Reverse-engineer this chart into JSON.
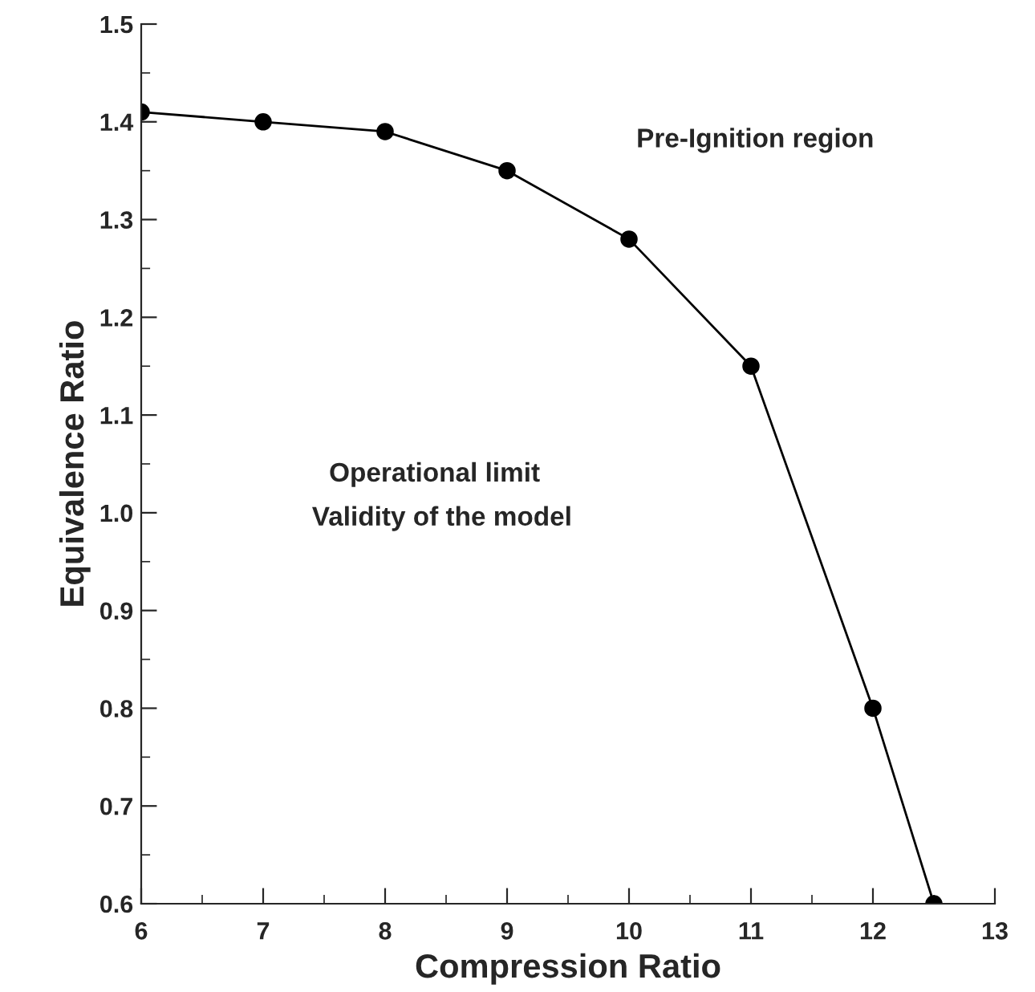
{
  "chart_data": {
    "type": "line",
    "xlabel": "Compression Ratio",
    "ylabel": "Equivalence Ratio",
    "x": [
      6,
      7,
      8,
      9,
      10,
      11,
      12,
      12.5
    ],
    "series": [
      {
        "color": "#000000",
        "values": [
          1.41,
          1.4,
          1.39,
          1.35,
          1.28,
          1.15,
          0.8,
          0.6
        ]
      }
    ],
    "marker": "circle",
    "line_style": "solid",
    "grid": false,
    "xlim": [
      6,
      13
    ],
    "xticks": [
      6,
      7,
      8,
      9,
      10,
      11,
      12,
      13
    ],
    "ylim": [
      0.6,
      1.5
    ],
    "yticks": [
      0.6,
      0.7,
      0.8,
      0.9,
      {
        "value": 1.0,
        "label": "1.0"
      },
      1.1,
      1.2,
      1.3,
      1.4,
      1.5
    ],
    "annotations": [
      "Pre-Ignition region",
      "Operational limit",
      "Validity of the model"
    ]
  }
}
